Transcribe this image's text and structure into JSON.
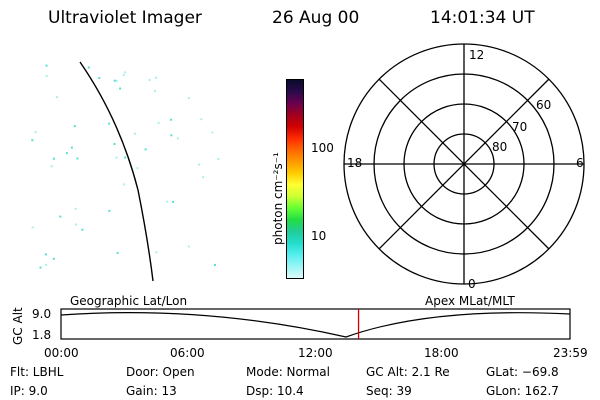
{
  "header": {
    "instrument": "Ultraviolet Imager",
    "date": "26 Aug 00",
    "time": "14:01:34 UT"
  },
  "colorbar": {
    "label": "photon cm⁻²s⁻¹",
    "ticks": [
      "100",
      "10"
    ],
    "colors": [
      "#0b0b2a",
      "#2a0a4a",
      "#6a0050",
      "#a00020",
      "#d00000",
      "#ff2a00",
      "#ff6600",
      "#ff9900",
      "#ffcc00",
      "#ffff33",
      "#ccff33",
      "#66ff33",
      "#22dd44",
      "#22cc99",
      "#22ddcc",
      "#55eeee",
      "#99f5f5",
      "#ddfafa"
    ]
  },
  "polar": {
    "mlt_labels": {
      "top": "12",
      "left": "18",
      "right": "6",
      "bottom": "0"
    },
    "lat_labels": [
      "60",
      "70",
      "80"
    ]
  },
  "timeline": {
    "left_label": "Geographic Lat/Lon",
    "right_label": "Apex MLat/MLT",
    "y_axis_title": "GC Alt",
    "y_ticks": [
      "9.0",
      "1.8"
    ],
    "x_ticks": [
      "00:00",
      "06:00",
      "12:00",
      "18:00",
      "23:59"
    ],
    "current_time_marker_hours": 14.03,
    "marker_color": "#cc0000"
  },
  "info": {
    "flt": "Flt:  LBHL",
    "ip": "IP:  9.0",
    "door": "Door:  Open",
    "gain": "Gain:  13",
    "mode": "Mode:  Normal",
    "dsp": "Dsp:     10.4",
    "gcalt": "GC Alt:  2.1 Re",
    "seq": "Seq:  39",
    "glat": "GLat:  −69.8",
    "glon": "GLon:  162.7"
  }
}
